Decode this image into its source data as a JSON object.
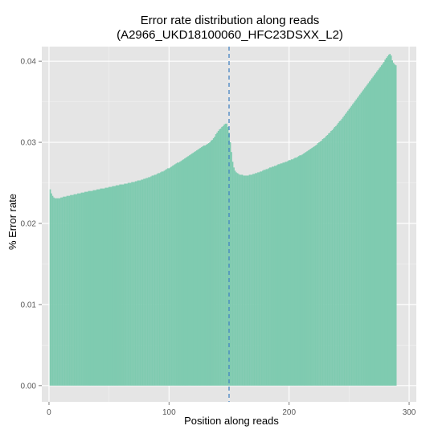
{
  "chart_data": {
    "type": "bar",
    "title": "Error rate distribution along reads",
    "subtitle": "(A2966_UKD18100060_HFC23DSXX_L2)",
    "xlabel": "Position along reads",
    "ylabel": "% Error rate",
    "xlim": [
      -6,
      306
    ],
    "ylim": [
      -0.002,
      0.0418
    ],
    "x_ticks": [
      0,
      100,
      200,
      300
    ],
    "y_ticks": [
      0.0,
      0.01,
      0.02,
      0.03,
      0.04
    ],
    "x_tick_labels": [
      "0",
      "100",
      "200",
      "300"
    ],
    "y_tick_labels": [
      "0.00",
      "0.01",
      "0.02",
      "0.03",
      "0.04"
    ],
    "vline_x": 150,
    "grid": true,
    "legend": "none",
    "colors": {
      "bar": "#7fcbb0",
      "panel": "#e5e5e5",
      "grid_major": "#ffffff",
      "grid_minor": "#f2f2f2",
      "vline": "#3a7dc0",
      "axis_text": "#5a5a5a",
      "label_text": "#000000"
    },
    "series": [
      {
        "x_start": 1,
        "values": [
          0.0242,
          0.0237,
          0.0234,
          0.0232,
          0.0231,
          0.0231,
          0.0231,
          0.0231,
          0.0231,
          0.0232,
          0.0232,
          0.0233,
          0.0233,
          0.0233,
          0.0234,
          0.0234,
          0.0234,
          0.0235,
          0.0235,
          0.0235,
          0.0236,
          0.0236,
          0.0236,
          0.0237,
          0.0237,
          0.0237,
          0.0238,
          0.0238,
          0.0238,
          0.0239,
          0.0239,
          0.0239,
          0.024,
          0.024,
          0.024,
          0.024,
          0.0241,
          0.0241,
          0.0241,
          0.0242,
          0.0242,
          0.0242,
          0.0243,
          0.0243,
          0.0243,
          0.0243,
          0.0244,
          0.0244,
          0.0244,
          0.0245,
          0.0245,
          0.0245,
          0.0246,
          0.0246,
          0.0246,
          0.0247,
          0.0247,
          0.0247,
          0.0248,
          0.0248,
          0.0248,
          0.0248,
          0.0249,
          0.0249,
          0.0249,
          0.025,
          0.025,
          0.025,
          0.0251,
          0.0251,
          0.0251,
          0.0252,
          0.0252,
          0.0253,
          0.0253,
          0.0253,
          0.0254,
          0.0254,
          0.0255,
          0.0255,
          0.0256,
          0.0256,
          0.0257,
          0.0257,
          0.0258,
          0.0259,
          0.0259,
          0.026,
          0.026,
          0.0261,
          0.0262,
          0.0262,
          0.0263,
          0.0264,
          0.0264,
          0.0265,
          0.0266,
          0.0267,
          0.0268,
          0.0268,
          0.0269,
          0.027,
          0.0271,
          0.0272,
          0.0273,
          0.0274,
          0.0275,
          0.0275,
          0.0276,
          0.0277,
          0.0278,
          0.0279,
          0.028,
          0.0281,
          0.0282,
          0.0283,
          0.0284,
          0.0285,
          0.0286,
          0.0287,
          0.0288,
          0.0289,
          0.029,
          0.0291,
          0.0292,
          0.0293,
          0.0294,
          0.0295,
          0.0296,
          0.0296,
          0.0297,
          0.0298,
          0.0299,
          0.03,
          0.0302,
          0.0303,
          0.0305,
          0.0307,
          0.031,
          0.0312,
          0.0314,
          0.0316,
          0.0317,
          0.0319,
          0.032,
          0.0322,
          0.0323,
          0.0323,
          0.0319,
          0.0312,
          0.03,
          0.0288,
          0.0276,
          0.0269,
          0.0265,
          0.0263,
          0.0262,
          0.0261,
          0.026,
          0.026,
          0.026,
          0.0259,
          0.0259,
          0.0259,
          0.0259,
          0.0259,
          0.026,
          0.026,
          0.026,
          0.0261,
          0.0261,
          0.0262,
          0.0262,
          0.0263,
          0.0263,
          0.0264,
          0.0264,
          0.0265,
          0.0266,
          0.0266,
          0.0267,
          0.0267,
          0.0268,
          0.0269,
          0.0269,
          0.027,
          0.027,
          0.0271,
          0.0271,
          0.0272,
          0.0273,
          0.0273,
          0.0274,
          0.0274,
          0.0275,
          0.0275,
          0.0276,
          0.0276,
          0.0277,
          0.0278,
          0.0278,
          0.0279,
          0.0279,
          0.028,
          0.0281,
          0.0281,
          0.0282,
          0.0283,
          0.0284,
          0.0284,
          0.0285,
          0.0286,
          0.0287,
          0.0288,
          0.0289,
          0.029,
          0.0291,
          0.0292,
          0.0293,
          0.0294,
          0.0295,
          0.0296,
          0.0297,
          0.0299,
          0.03,
          0.0301,
          0.0302,
          0.0304,
          0.0305,
          0.0306,
          0.0308,
          0.0309,
          0.0311,
          0.0312,
          0.0314,
          0.0315,
          0.0317,
          0.0319,
          0.032,
          0.0322,
          0.0324,
          0.0326,
          0.0327,
          0.0329,
          0.0331,
          0.0333,
          0.0335,
          0.0337,
          0.0339,
          0.0341,
          0.0343,
          0.0345,
          0.0347,
          0.0349,
          0.0351,
          0.0353,
          0.0355,
          0.0357,
          0.0359,
          0.0361,
          0.0363,
          0.0365,
          0.0367,
          0.0369,
          0.0371,
          0.0373,
          0.0375,
          0.0377,
          0.0379,
          0.0381,
          0.0383,
          0.0385,
          0.0387,
          0.0389,
          0.0391,
          0.0393,
          0.0395,
          0.0397,
          0.0399,
          0.0402,
          0.0404,
          0.0406,
          0.0408,
          0.0409,
          0.0407,
          0.0401,
          0.0398,
          0.0396,
          0.0395
        ]
      }
    ]
  }
}
